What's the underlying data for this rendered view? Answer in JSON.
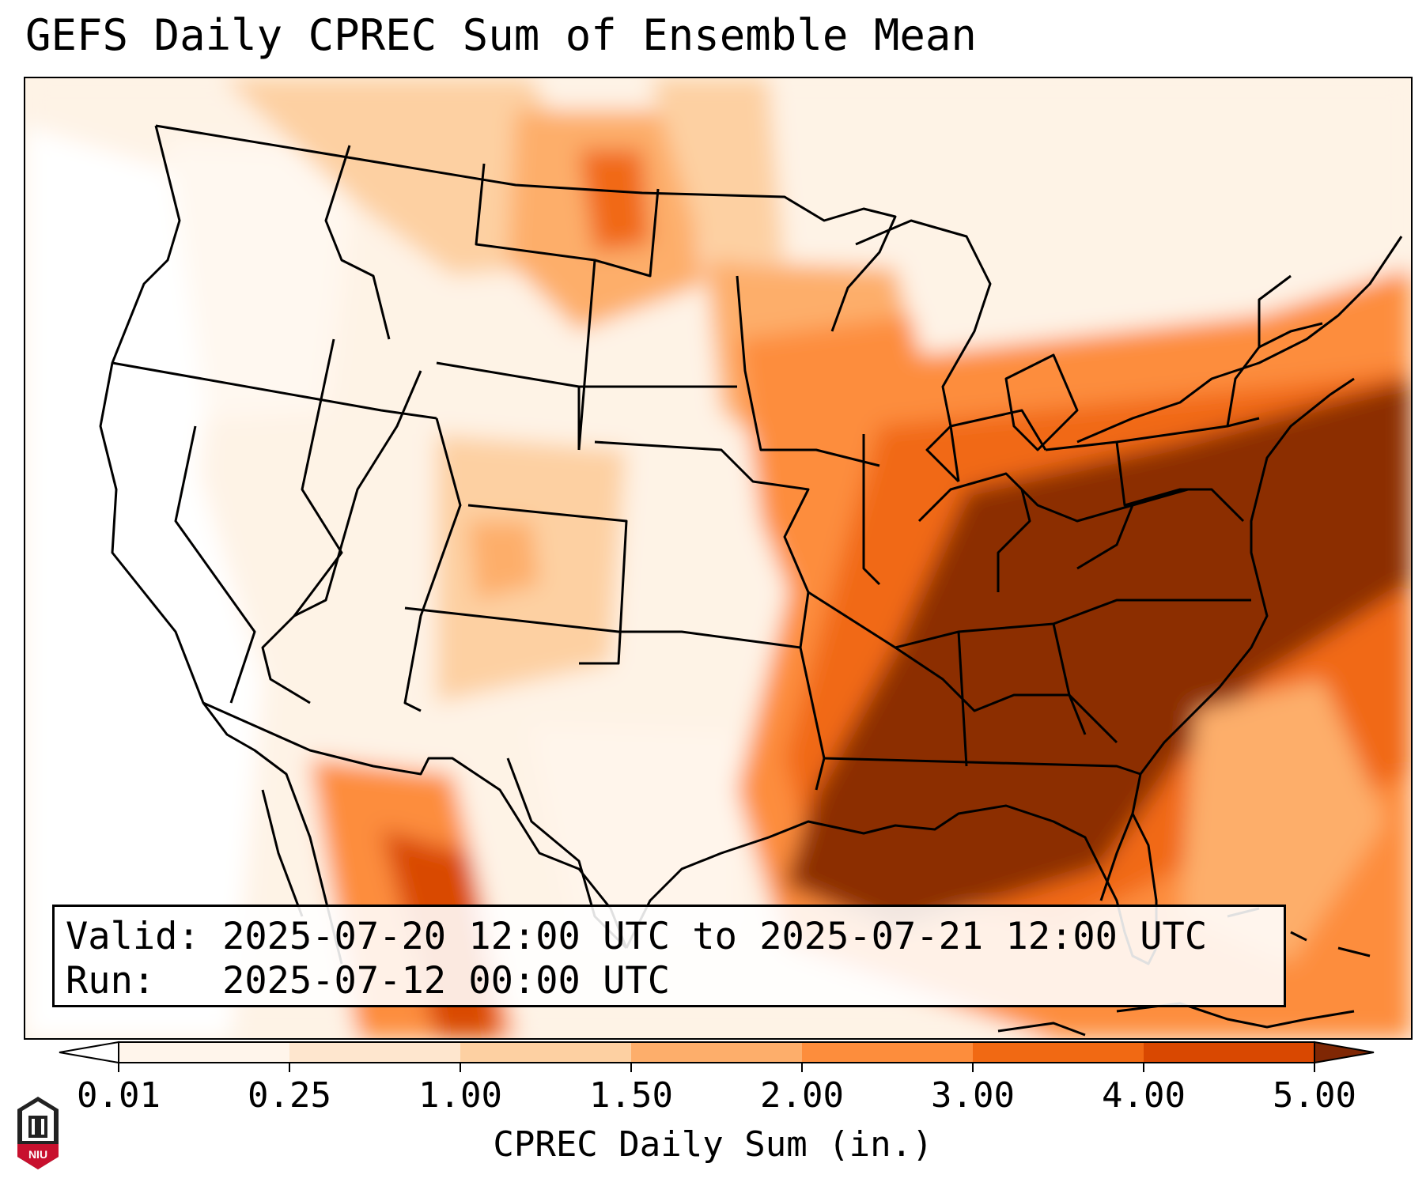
{
  "title": "GEFS Daily CPREC Sum of Ensemble Mean",
  "info": {
    "valid_label": "Valid:",
    "valid_value": "2025-07-20 12:00 UTC to 2025-07-21 12:00 UTC",
    "run_label": "Run:",
    "run_value": "2025-07-12 00:00 UTC"
  },
  "colorbar": {
    "label": "CPREC Daily Sum (in.)",
    "ticks": [
      "0.01",
      "0.25",
      "1.00",
      "1.50",
      "2.00",
      "3.00",
      "4.00",
      "5.00"
    ],
    "colors": [
      "#fff5eb",
      "#fee6ce",
      "#fdd0a2",
      "#fdae6b",
      "#fd8d3c",
      "#f16913",
      "#d94801",
      "#8c2d04"
    ],
    "under_color": "#ffffff",
    "over_color": "#7f2704"
  },
  "logo": {
    "text": "NIU",
    "color": "#c8102e"
  }
}
